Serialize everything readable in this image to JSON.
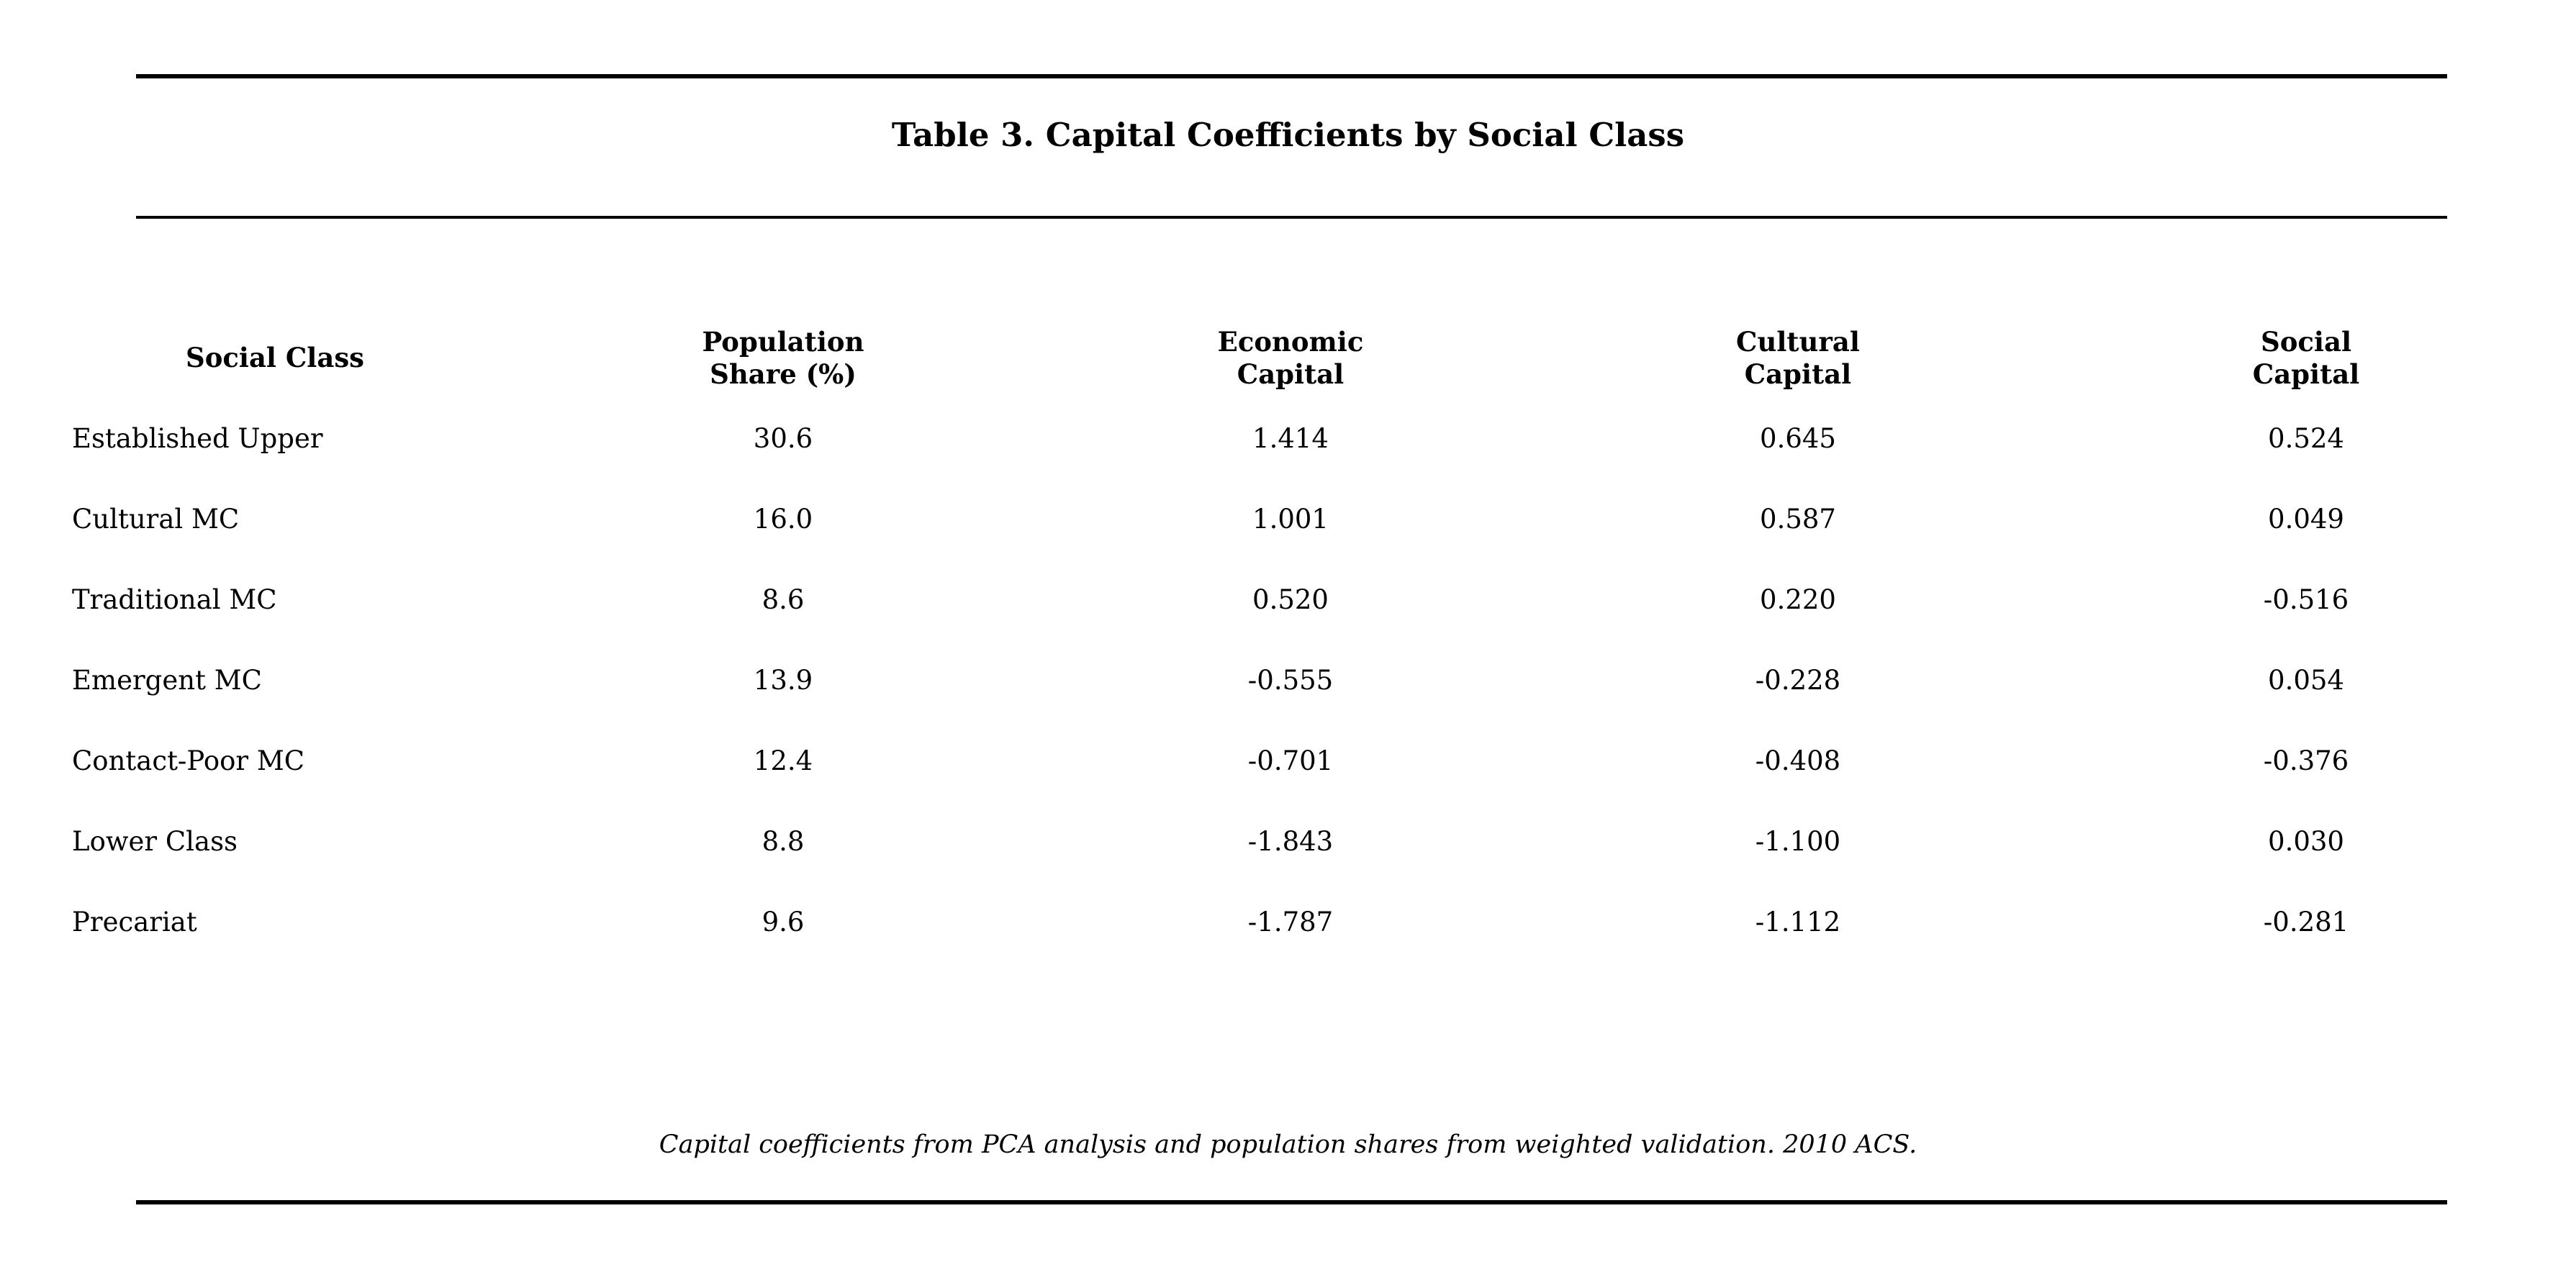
{
  "chart_data": {
    "type": "table",
    "title": "Table 3. Capital Coefficients by Social Class",
    "columns": [
      {
        "key": "class",
        "lines": [
          "Social Class"
        ]
      },
      {
        "key": "share",
        "lines": [
          "Population",
          "Share (%)"
        ]
      },
      {
        "key": "economic",
        "lines": [
          "Economic",
          "Capital"
        ]
      },
      {
        "key": "cultural",
        "lines": [
          "Cultural",
          "Capital"
        ]
      },
      {
        "key": "social",
        "lines": [
          "Social",
          "Capital"
        ]
      }
    ],
    "rows": [
      {
        "class": "Established Upper",
        "share": "30.6",
        "economic": "1.414",
        "cultural": "0.645",
        "social": "0.524"
      },
      {
        "class": "Cultural MC",
        "share": "16.0",
        "economic": "1.001",
        "cultural": "0.587",
        "social": "0.049"
      },
      {
        "class": "Traditional MC",
        "share": "8.6",
        "economic": "0.520",
        "cultural": "0.220",
        "social": "-0.516"
      },
      {
        "class": "Emergent MC",
        "share": "13.9",
        "economic": "-0.555",
        "cultural": "-0.228",
        "social": "0.054"
      },
      {
        "class": "Contact-Poor MC",
        "share": "12.4",
        "economic": "-0.701",
        "cultural": "-0.408",
        "social": "-0.376"
      },
      {
        "class": "Lower Class",
        "share": "8.8",
        "economic": "-1.843",
        "cultural": "-1.100",
        "social": "0.030"
      },
      {
        "class": "Precariat",
        "share": "9.6",
        "economic": "-1.787",
        "cultural": "-1.112",
        "social": "-0.281"
      }
    ],
    "note": "Capital coefficients from PCA analysis and population shares from weighted validation. 2010 ACS."
  }
}
